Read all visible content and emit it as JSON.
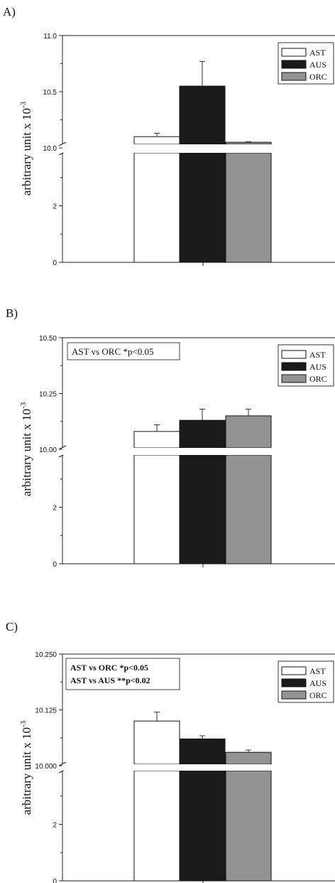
{
  "figure": {
    "ylabel": "arbitrary unit x 10",
    "ylabel_exp": "-3"
  },
  "chart_data": [
    {
      "type": "bar",
      "panel_label": "A)",
      "categories": [
        "AST",
        "AUS",
        "ORC"
      ],
      "series": [
        {
          "name": "AST",
          "value": 10.1,
          "error": 0.03,
          "color": "#ffffff"
        },
        {
          "name": "AUS",
          "value": 10.55,
          "error": 0.22,
          "color": "#1a1a1a"
        },
        {
          "name": "ORC",
          "value": 10.05,
          "error": 0.005,
          "color": "#939393"
        }
      ],
      "ylabel": "arbitrary unit x 10-3",
      "axis_break": {
        "lower": [
          0,
          4
        ],
        "upper": [
          10.0,
          11.0
        ]
      },
      "lower_ticks": [
        "0",
        "2"
      ],
      "upper_ticks": [
        "10.0",
        "10.5",
        "11.0"
      ],
      "legend": "top-right",
      "annotations": []
    },
    {
      "type": "bar",
      "panel_label": "B)",
      "categories": [
        "AST",
        "AUS",
        "ORC"
      ],
      "series": [
        {
          "name": "AST",
          "value": 10.08,
          "error": 0.03,
          "color": "#ffffff"
        },
        {
          "name": "AUS",
          "value": 10.13,
          "error": 0.05,
          "color": "#1a1a1a"
        },
        {
          "name": "ORC",
          "value": 10.15,
          "error": 0.03,
          "color": "#939393"
        }
      ],
      "ylabel": "arbitrary unit x 10-3",
      "axis_break": {
        "lower": [
          0,
          4
        ],
        "upper": [
          10.0,
          10.5
        ]
      },
      "lower_ticks": [
        "0",
        "2"
      ],
      "upper_ticks": [
        "10.00",
        "10.25",
        "10.50"
      ],
      "legend": "top-right",
      "annotations": [
        "AST vs ORC *p<0.05"
      ]
    },
    {
      "type": "bar",
      "panel_label": "C)",
      "categories": [
        "AST",
        "AUS",
        "ORC"
      ],
      "series": [
        {
          "name": "AST",
          "value": 10.1,
          "error": 0.02,
          "color": "#ffffff"
        },
        {
          "name": "AUS",
          "value": 10.06,
          "error": 0.007,
          "color": "#1a1a1a"
        },
        {
          "name": "ORC",
          "value": 10.03,
          "error": 0.005,
          "color": "#939393"
        }
      ],
      "ylabel": "arbitrary unit x 10-3",
      "axis_break": {
        "lower": [
          0,
          4
        ],
        "upper": [
          10.0,
          10.25
        ]
      },
      "lower_ticks": [
        "0",
        "2"
      ],
      "upper_ticks": [
        "10.000",
        "10.125",
        "10.250"
      ],
      "legend": "top-right",
      "annotations": [
        "AST vs ORC  *p<0.05",
        "AST vs AUS **p<0.02"
      ]
    }
  ]
}
